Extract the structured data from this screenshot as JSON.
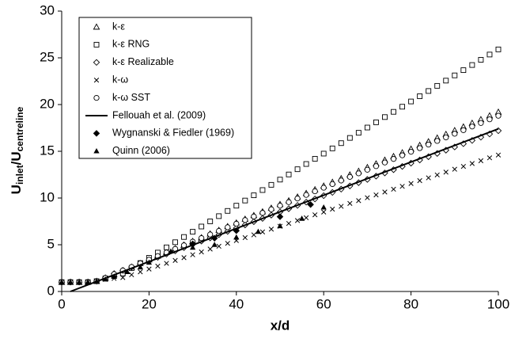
{
  "chart_data": {
    "type": "scatter",
    "xlabel": "x/d",
    "ylabel": [
      "U",
      "inlet",
      "/U",
      "centreline"
    ],
    "xlim": [
      0,
      100
    ],
    "xticks": [
      0,
      20,
      40,
      60,
      80,
      100
    ],
    "ylim": [
      0,
      30
    ],
    "yticks": [
      0,
      5,
      10,
      15,
      20,
      25,
      30
    ],
    "grid": false,
    "legend": "upper left",
    "x": [
      0,
      2,
      4,
      6,
      8,
      10,
      12,
      14,
      16,
      18,
      20,
      22,
      24,
      26,
      28,
      30,
      32,
      34,
      36,
      38,
      40,
      42,
      44,
      46,
      48,
      50,
      52,
      54,
      56,
      58,
      60,
      62,
      64,
      66,
      68,
      70,
      72,
      74,
      76,
      78,
      80,
      82,
      84,
      86,
      88,
      90,
      92,
      94,
      96,
      98,
      100
    ],
    "series": [
      {
        "name": "k-ε",
        "marker": "triangle-open",
        "color": "#000000",
        "values": [
          1,
          1,
          1,
          1,
          1.1,
          1.45,
          1.82,
          2.22,
          2.61,
          3.01,
          3.4,
          3.8,
          4.19,
          4.59,
          4.98,
          5.38,
          5.77,
          6.17,
          6.56,
          6.96,
          7.35,
          7.75,
          8.14,
          8.54,
          8.93,
          9.33,
          9.72,
          10.12,
          10.51,
          10.91,
          11.3,
          11.7,
          12.09,
          12.49,
          12.88,
          13.28,
          13.67,
          14.07,
          14.46,
          14.86,
          15.25,
          15.65,
          16.04,
          16.44,
          16.83,
          17.23,
          17.62,
          18.02,
          18.41,
          18.81,
          19.2
        ]
      },
      {
        "name": "k-ε RNG",
        "marker": "square-open",
        "color": "#000000",
        "values": [
          1,
          1,
          1,
          1,
          1.1,
          1.4,
          1.65,
          1.93,
          2.49,
          3.04,
          3.6,
          4.16,
          4.72,
          5.27,
          5.83,
          6.39,
          6.95,
          7.5,
          8.06,
          8.62,
          9.18,
          9.73,
          10.29,
          10.85,
          11.41,
          11.97,
          12.52,
          13.08,
          13.64,
          14.2,
          14.75,
          15.31,
          15.87,
          16.43,
          16.98,
          17.54,
          18.1,
          18.66,
          19.22,
          19.77,
          20.33,
          20.89,
          21.45,
          22,
          22.56,
          23.12,
          23.68,
          24.23,
          24.79,
          25.35,
          25.9
        ]
      },
      {
        "name": "k-ε Realizable",
        "marker": "diamond-open",
        "color": "#000000",
        "values": [
          1,
          1,
          1,
          1,
          1.1,
          1.45,
          1.91,
          2.26,
          2.61,
          2.95,
          3.3,
          3.65,
          4,
          4.34,
          4.69,
          5.04,
          5.39,
          5.73,
          6.08,
          6.43,
          6.78,
          7.12,
          7.47,
          7.82,
          8.17,
          8.51,
          8.86,
          9.21,
          9.56,
          9.9,
          10.25,
          10.6,
          10.95,
          11.29,
          11.64,
          11.99,
          12.34,
          12.68,
          13.03,
          13.38,
          13.73,
          14.07,
          14.42,
          14.77,
          15.12,
          15.46,
          15.81,
          16.16,
          16.51,
          16.85,
          17.2
        ]
      },
      {
        "name": "k-ω",
        "marker": "cross",
        "color": "#000000",
        "values": [
          1,
          1,
          1,
          1,
          1.1,
          1.3,
          1.4,
          1.49,
          1.79,
          2.1,
          2.4,
          2.71,
          3.01,
          3.32,
          3.62,
          3.93,
          4.23,
          4.54,
          4.84,
          5.15,
          5.45,
          5.76,
          6.06,
          6.37,
          6.67,
          6.98,
          7.28,
          7.59,
          7.89,
          8.2,
          8.5,
          8.81,
          9.11,
          9.42,
          9.72,
          10.03,
          10.33,
          10.64,
          10.94,
          11.25,
          11.55,
          11.86,
          12.16,
          12.47,
          12.77,
          13.08,
          13.38,
          13.69,
          13.99,
          14.3,
          14.6
        ]
      },
      {
        "name": "k-ω SST",
        "marker": "circle-open",
        "color": "#000000",
        "values": [
          1,
          1,
          1,
          1,
          1.1,
          1.45,
          1.86,
          2.25,
          2.63,
          3.02,
          3.4,
          3.79,
          4.17,
          4.56,
          4.94,
          5.33,
          5.71,
          6.1,
          6.48,
          6.87,
          7.25,
          7.64,
          8.02,
          8.41,
          8.79,
          9.18,
          9.56,
          9.95,
          10.33,
          10.72,
          11.1,
          11.49,
          11.87,
          12.26,
          12.64,
          13.03,
          13.41,
          13.8,
          14.18,
          14.57,
          14.95,
          15.34,
          15.72,
          16.11,
          16.49,
          16.88,
          17.26,
          17.65,
          18.03,
          18.42,
          18.8
        ]
      },
      {
        "name": "Fellouah et al. (2009)",
        "marker": "line",
        "color": "#000000",
        "x": [
          2,
          100
        ],
        "values": [
          0,
          17.4
        ]
      },
      {
        "name": "Wygnanski & Fiedler (1969)",
        "marker": "diamond-filled",
        "color": "#000000",
        "x": [
          30,
          35,
          40,
          50,
          57
        ],
        "values": [
          5.1,
          5.7,
          6.5,
          8.0,
          9.3
        ]
      },
      {
        "name": "Quinn (2006)",
        "marker": "triangle-filled",
        "color": "#000000",
        "x": [
          0,
          2,
          4,
          6,
          8,
          10,
          12,
          15,
          18,
          20,
          25,
          30,
          35,
          40,
          45,
          50,
          55,
          60
        ],
        "values": [
          1,
          1,
          1,
          1,
          1.1,
          1.3,
          1.6,
          2.1,
          2.6,
          3.1,
          4.3,
          4.7,
          5.0,
          5.8,
          6.4,
          7.0,
          7.8,
          9.0
        ]
      }
    ]
  }
}
